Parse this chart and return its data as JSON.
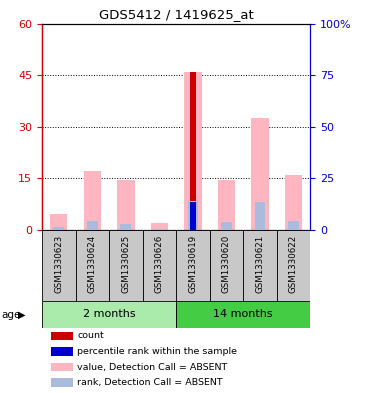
{
  "title": "GDS5412 / 1419625_at",
  "samples": [
    "GSM1330623",
    "GSM1330624",
    "GSM1330625",
    "GSM1330626",
    "GSM1330619",
    "GSM1330620",
    "GSM1330621",
    "GSM1330622"
  ],
  "value_absent": [
    4.5,
    17.0,
    14.5,
    2.0,
    46.0,
    14.5,
    32.5,
    16.0
  ],
  "rank_absent": [
    1.5,
    4.5,
    3.0,
    0.5,
    14.0,
    4.0,
    13.5,
    4.5
  ],
  "count_val": [
    0.0,
    0.0,
    0.0,
    0.0,
    46.0,
    0.0,
    0.0,
    0.0
  ],
  "percentile_val": [
    0.0,
    0.0,
    0.0,
    0.0,
    13.5,
    0.0,
    0.0,
    0.0
  ],
  "left_ylim": [
    0,
    60
  ],
  "right_ylim": [
    0,
    100
  ],
  "left_yticks": [
    0,
    15,
    30,
    45,
    60
  ],
  "right_yticks": [
    0,
    25,
    50,
    75,
    100
  ],
  "right_ytick_labels": [
    "0",
    "25",
    "50",
    "75",
    "100%"
  ],
  "color_count": "#CC0000",
  "color_percentile": "#0000CC",
  "color_value_absent": "#FFB6C1",
  "color_rank_absent": "#AABBDD",
  "left_axis_color": "#CC0000",
  "right_axis_color": "#0000CC",
  "gray_cell": "#C8C8C8",
  "group_2m_color": "#AAEAAA",
  "group_14m_color": "#44CC44",
  "legend_items": [
    [
      "#CC0000",
      "count"
    ],
    [
      "#0000CC",
      "percentile rank within the sample"
    ],
    [
      "#FFB6C1",
      "value, Detection Call = ABSENT"
    ],
    [
      "#AABBDD",
      "rank, Detection Call = ABSENT"
    ]
  ]
}
